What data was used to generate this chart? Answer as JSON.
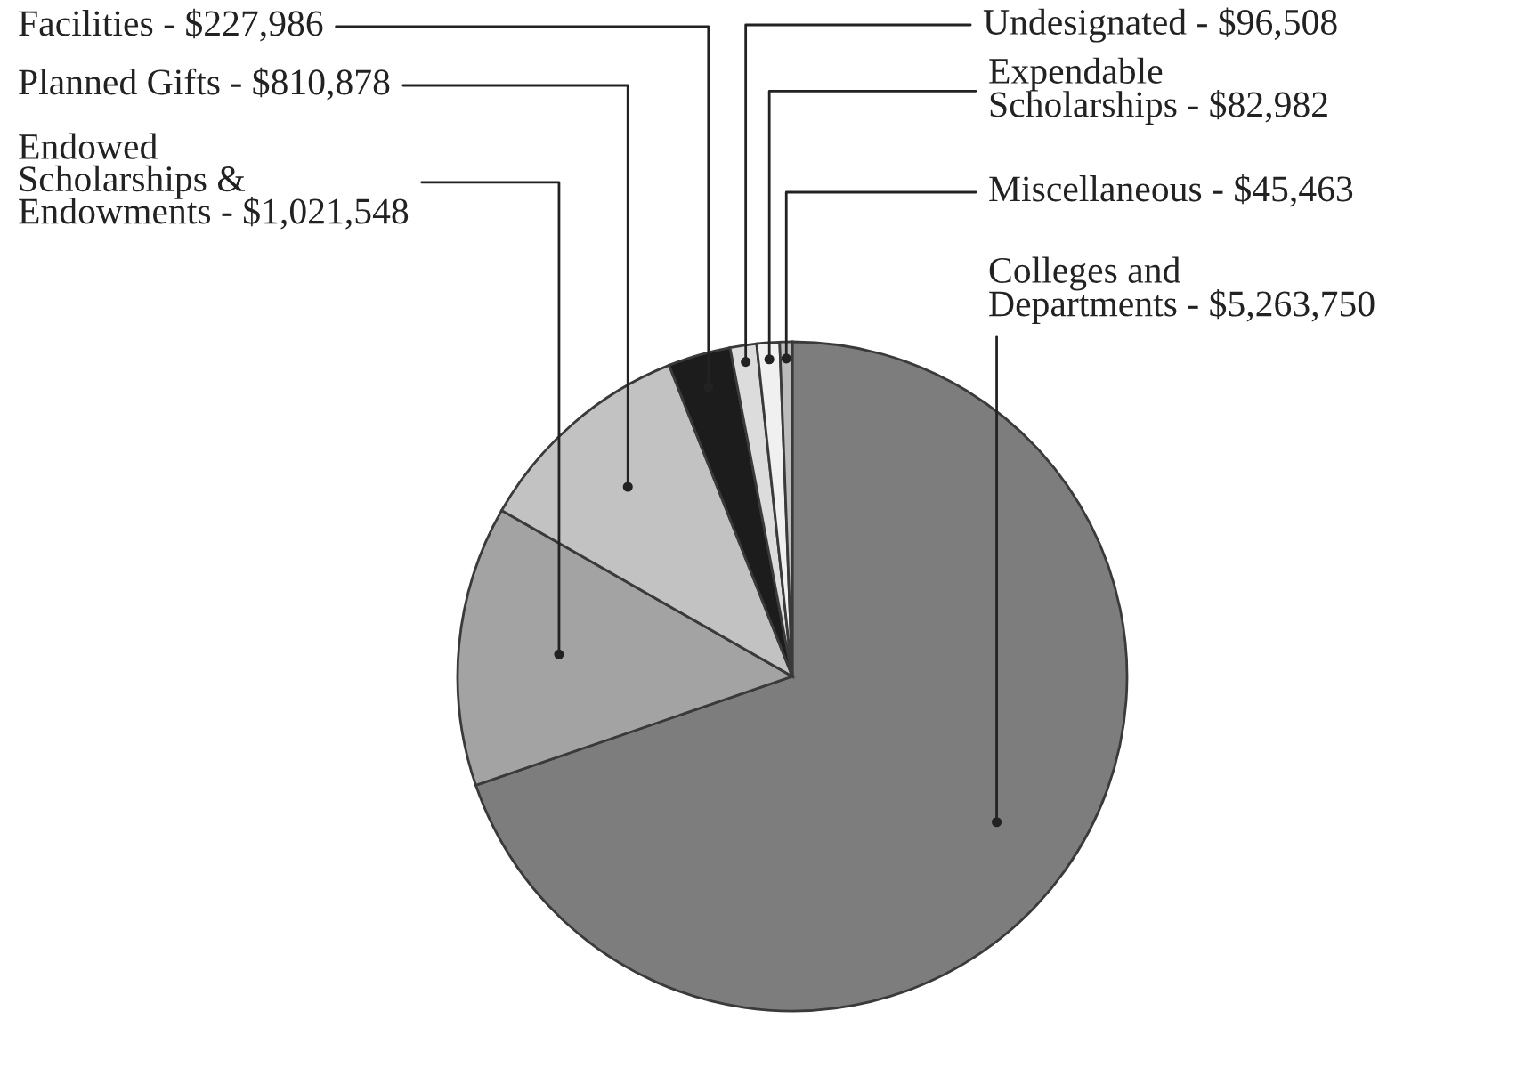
{
  "chart_data": {
    "type": "pie",
    "categories": [
      "Colleges and\nDepartments -",
      "Endowed\nScholarships &\nEndowments -",
      "Planned Gifts -",
      "Facilities -",
      "Undesignated -",
      "Expendable\nScholarships -",
      "Miscellaneous -"
    ],
    "values": [
      5263750,
      1021548,
      810878,
      227986,
      96508,
      82982,
      45463
    ],
    "value_labels": [
      "$5,263,750",
      "$1,021,548",
      "$810,878",
      "$227,986",
      "$96,508",
      "$82,982",
      "$45,463"
    ],
    "colors": [
      "#7d7d7d",
      "#a3a3a3",
      "#c2c2c2",
      "#1c1c1c",
      "#dcdcdc",
      "#f0f0f0",
      "#bcbcbc"
    ]
  }
}
